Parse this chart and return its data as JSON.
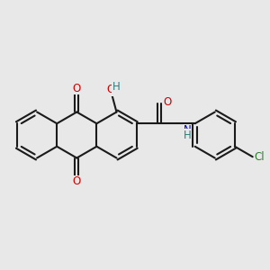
{
  "background_color": "#e8e8e8",
  "bond_color": "#1a1a1a",
  "bond_width": 1.5,
  "atom_colors": {
    "O": "#cc0000",
    "N": "#0000cc",
    "H_color": "#2d7d7d",
    "Cl": "#2d7d2d",
    "C": "#1a1a1a"
  },
  "font_size": 8.5,
  "fig_size": [
    3.0,
    3.0
  ],
  "dpi": 100
}
